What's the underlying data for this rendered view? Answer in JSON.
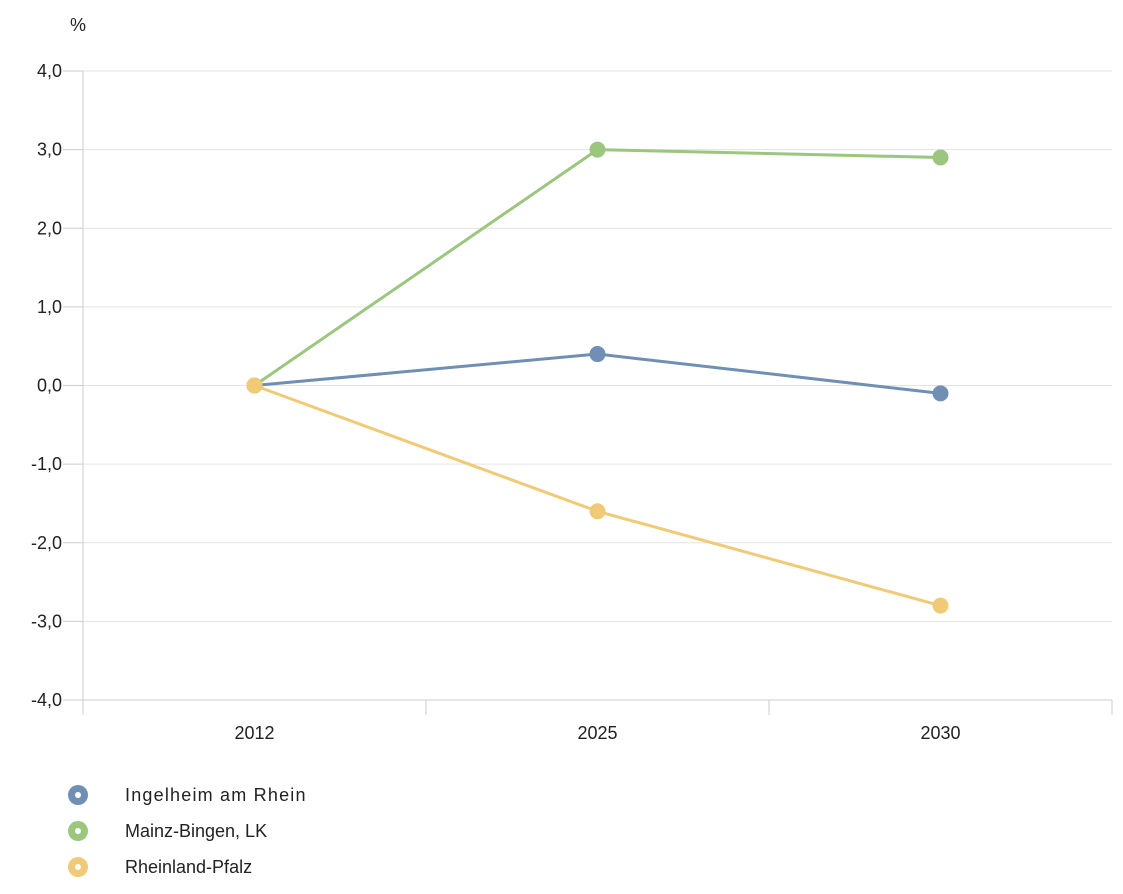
{
  "chart_data": {
    "type": "line",
    "title": "",
    "xlabel": "",
    "ylabel": "%",
    "categories": [
      "2012",
      "2025",
      "2030"
    ],
    "ylim": [
      -4,
      4
    ],
    "yticks": [
      4,
      3,
      2,
      1,
      0,
      -1,
      -2,
      -3,
      -4
    ],
    "ytick_labels": [
      "4,0",
      "3,0",
      "2,0",
      "1,0",
      "0,0",
      "-1,0",
      "-2,0",
      "-3,0",
      "-4,0"
    ],
    "grid": true,
    "legend_position": "bottom-left",
    "series": [
      {
        "name": "Ingelheim am Rhein",
        "values": [
          0.0,
          0.4,
          -0.1
        ],
        "color": "#6f8fb5"
      },
      {
        "name": "Mainz-Bingen, LK",
        "values": [
          0.0,
          3.0,
          2.9
        ],
        "color": "#9bc67e"
      },
      {
        "name": "Rheinland-Pfalz",
        "values": [
          0.0,
          -1.6,
          -2.8
        ],
        "color": "#f0ca76"
      }
    ]
  }
}
